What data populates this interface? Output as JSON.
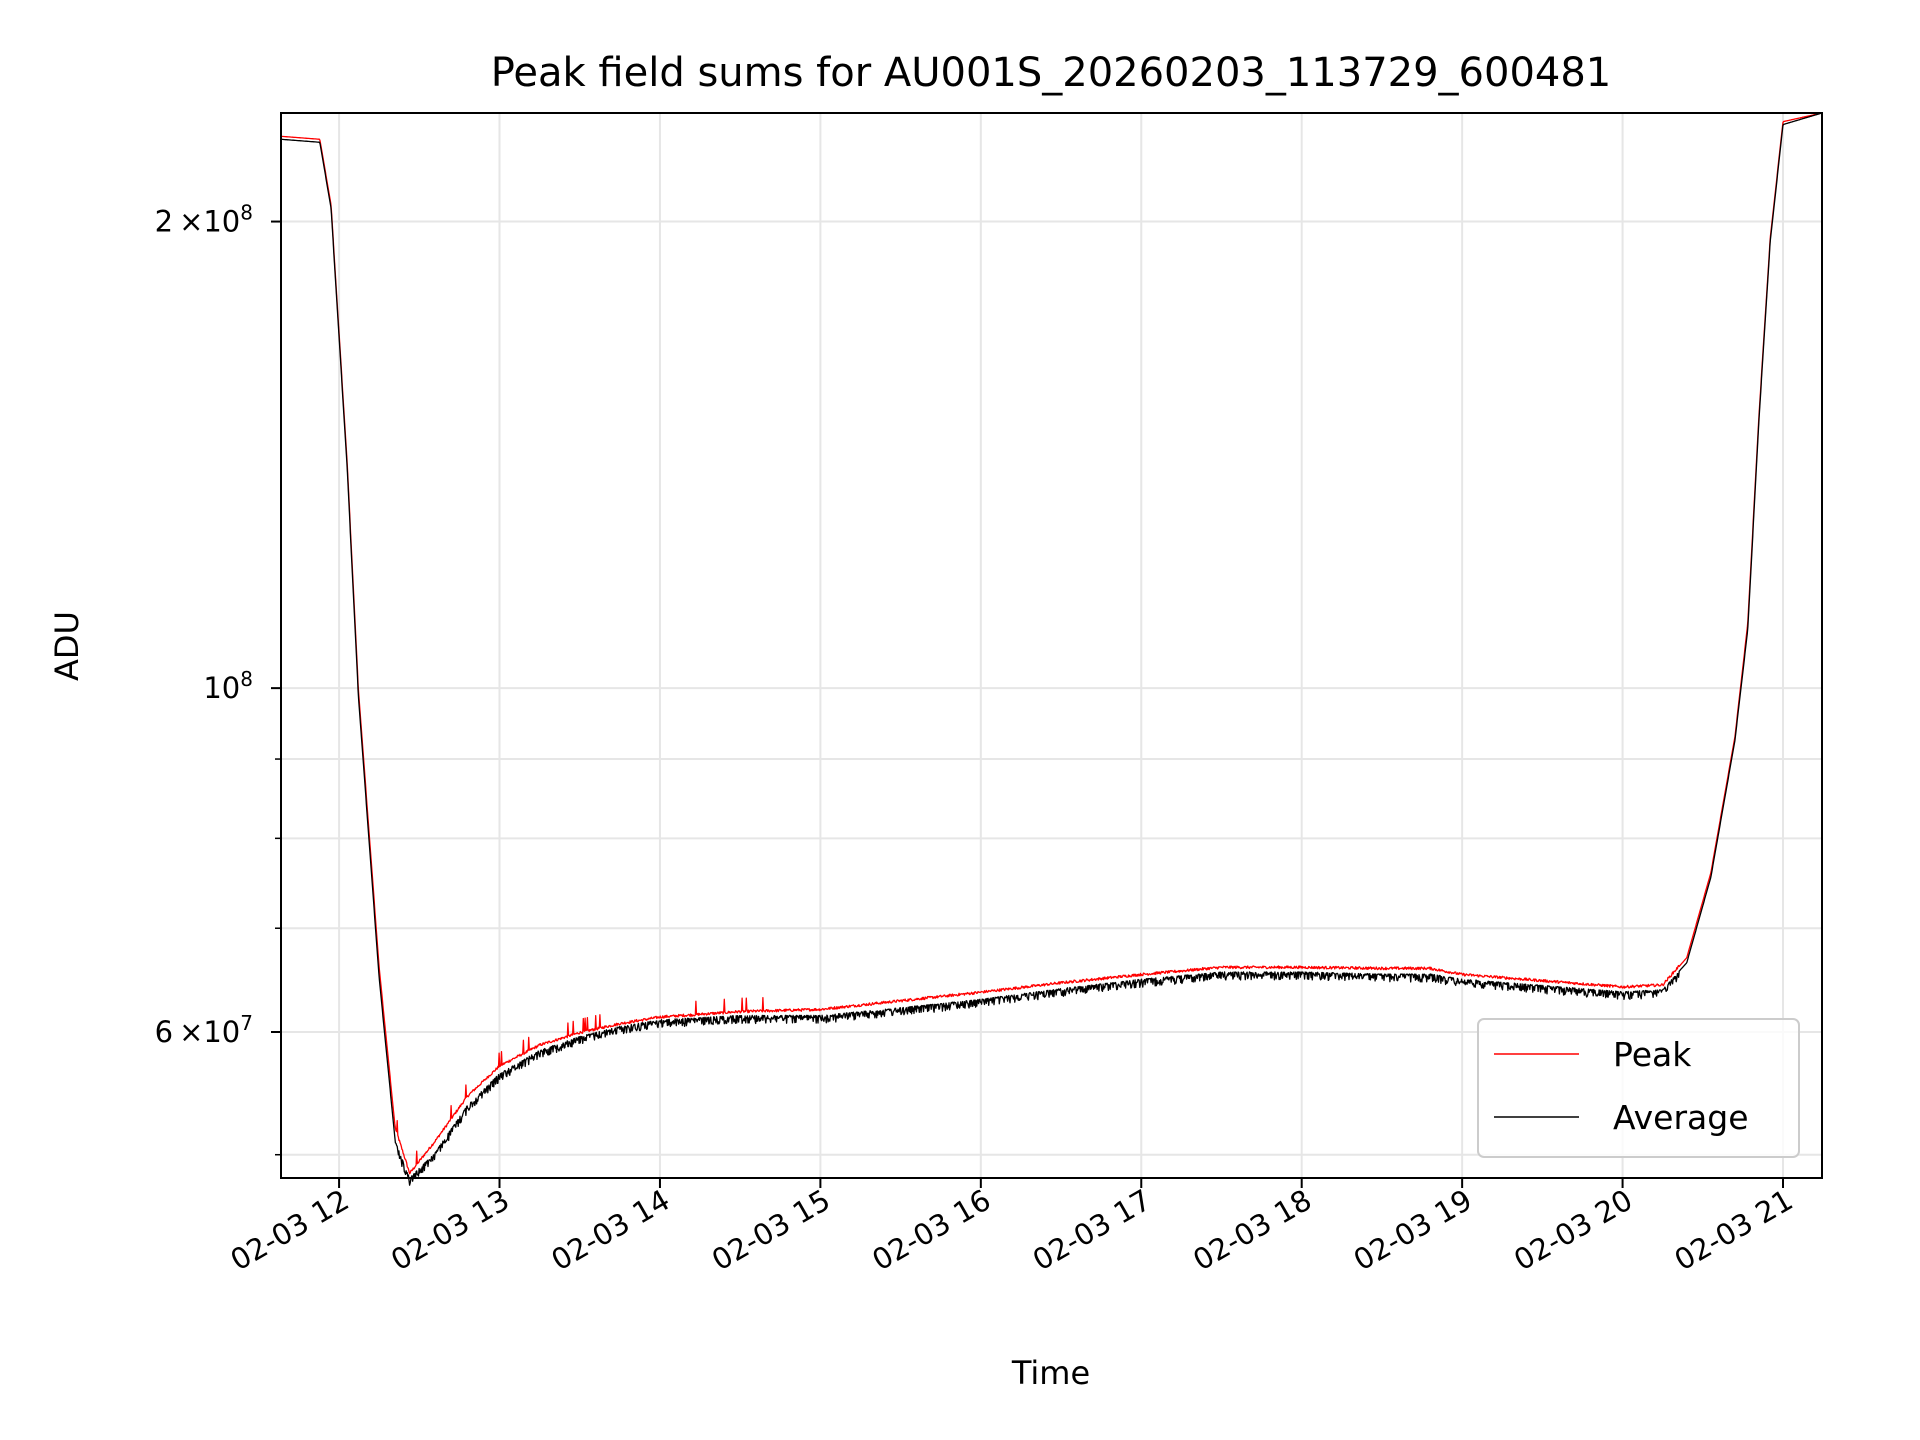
{
  "chart_data": {
    "type": "line",
    "title": "Peak field sums for AU001S_20260203_113729_600481",
    "xlabel": "Time",
    "ylabel": "ADU",
    "yscale": "log",
    "xlim_hours": [
      11.638,
      21.243
    ],
    "ylim": [
      48300000,
      235000000
    ],
    "grid": true,
    "legend_position": "lower-right",
    "x_ticks": [
      {
        "hour": 12,
        "label": "02-03 12"
      },
      {
        "hour": 13,
        "label": "02-03 13"
      },
      {
        "hour": 14,
        "label": "02-03 14"
      },
      {
        "hour": 15,
        "label": "02-03 15"
      },
      {
        "hour": 16,
        "label": "02-03 16"
      },
      {
        "hour": 17,
        "label": "02-03 17"
      },
      {
        "hour": 18,
        "label": "02-03 18"
      },
      {
        "hour": 19,
        "label": "02-03 19"
      },
      {
        "hour": 20,
        "label": "02-03 20"
      },
      {
        "hour": 21,
        "label": "02-03 21"
      }
    ],
    "y_major_ticks": [
      {
        "value": 200000000,
        "mant": "2",
        "label": "×10",
        "exp": "8"
      },
      {
        "value": 100000000,
        "mant": "",
        "label": "10",
        "exp": "8"
      },
      {
        "value": 60000000,
        "mant": "6",
        "label": "×10",
        "exp": "7"
      }
    ],
    "y_minor_ticks": [
      50000000,
      70000000,
      80000000,
      90000000
    ],
    "series": [
      {
        "name": "Peak",
        "color": "#ff0000",
        "points": [
          [
            11.638,
            227000000
          ],
          [
            11.88,
            226000000
          ],
          [
            11.95,
            205000000
          ],
          [
            12.05,
            140000000
          ],
          [
            12.12,
            100000000
          ],
          [
            12.25,
            66000000
          ],
          [
            12.35,
            52000000
          ],
          [
            12.44,
            48600000
          ],
          [
            12.6,
            51000000
          ],
          [
            12.8,
            54500000
          ],
          [
            13.0,
            57000000
          ],
          [
            13.25,
            58800000
          ],
          [
            13.5,
            59900000
          ],
          [
            13.75,
            60700000
          ],
          [
            14.0,
            61300000
          ],
          [
            14.5,
            61800000
          ],
          [
            15.0,
            62000000
          ],
          [
            15.5,
            62800000
          ],
          [
            16.0,
            63600000
          ],
          [
            16.5,
            64500000
          ],
          [
            17.0,
            65300000
          ],
          [
            17.5,
            66000000
          ],
          [
            18.0,
            66000000
          ],
          [
            18.5,
            65900000
          ],
          [
            18.8,
            65900000
          ],
          [
            19.0,
            65300000
          ],
          [
            19.5,
            64700000
          ],
          [
            20.0,
            64100000
          ],
          [
            20.25,
            64300000
          ],
          [
            20.4,
            67000000
          ],
          [
            20.55,
            76000000
          ],
          [
            20.7,
            93000000
          ],
          [
            20.78,
            110000000
          ],
          [
            20.85,
            150000000
          ],
          [
            20.92,
            195000000
          ],
          [
            21.0,
            232000000
          ],
          [
            21.243,
            235000000
          ]
        ],
        "noise": 0.004
      },
      {
        "name": "Average",
        "color": "#000000",
        "points": [
          [
            11.638,
            226000000
          ],
          [
            11.88,
            225000000
          ],
          [
            11.95,
            204000000
          ],
          [
            12.05,
            139000000
          ],
          [
            12.12,
            99000000
          ],
          [
            12.25,
            65000000
          ],
          [
            12.35,
            51000000
          ],
          [
            12.44,
            48300000
          ],
          [
            12.6,
            50200000
          ],
          [
            12.8,
            53800000
          ],
          [
            13.0,
            56400000
          ],
          [
            13.25,
            58400000
          ],
          [
            13.5,
            59600000
          ],
          [
            13.75,
            60500000
          ],
          [
            14.0,
            61100000
          ],
          [
            14.5,
            61500000
          ],
          [
            15.0,
            61500000
          ],
          [
            15.5,
            62200000
          ],
          [
            16.0,
            63000000
          ],
          [
            16.5,
            64000000
          ],
          [
            17.0,
            64900000
          ],
          [
            17.5,
            65600000
          ],
          [
            18.0,
            65600000
          ],
          [
            18.5,
            65400000
          ],
          [
            18.8,
            65400000
          ],
          [
            19.0,
            64900000
          ],
          [
            19.5,
            64300000
          ],
          [
            20.0,
            63700000
          ],
          [
            20.25,
            63900000
          ],
          [
            20.4,
            66500000
          ],
          [
            20.55,
            75500000
          ],
          [
            20.7,
            92500000
          ],
          [
            20.78,
            109000000
          ],
          [
            20.85,
            149000000
          ],
          [
            20.92,
            194000000
          ],
          [
            21.0,
            231000000
          ],
          [
            21.243,
            235000000
          ]
        ],
        "noise": 0.012
      }
    ]
  }
}
